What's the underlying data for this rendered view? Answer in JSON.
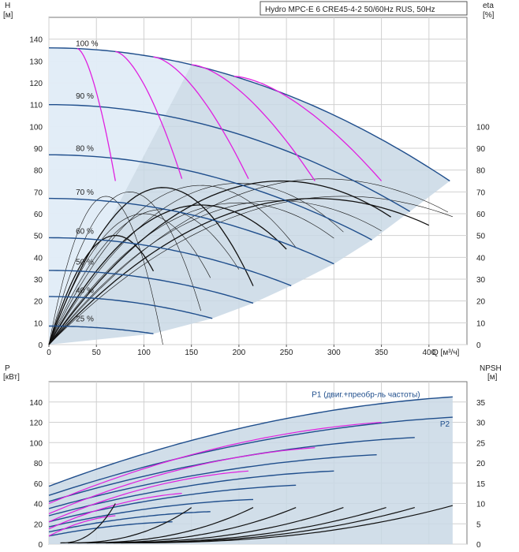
{
  "chart_data": [
    {
      "type": "line",
      "title": "Hydro MPC-E 6 CRE45-4-2 50/60Hz RUS, 50Hz",
      "ylabel": "H",
      "yunit": "[м]",
      "y2label": "eta",
      "y2unit": "[%]",
      "xlabel": "Q [м³/ч]",
      "xlim": [
        0,
        440
      ],
      "ylim": [
        0,
        150
      ],
      "y2lim": [
        0,
        150
      ],
      "grid": true,
      "x_ticks": [
        "0",
        "50",
        "100",
        "150",
        "200",
        "250",
        "300",
        "350",
        "400"
      ],
      "y_ticks": [
        "0",
        "10",
        "20",
        "30",
        "40",
        "50",
        "60",
        "70",
        "80",
        "90",
        "100",
        "110",
        "120",
        "130",
        "140"
      ],
      "y2_ticks": [
        "0",
        "10",
        "20",
        "30",
        "40",
        "50",
        "60",
        "70",
        "80",
        "90",
        "100"
      ],
      "colors": {
        "head": "#1f4e8c",
        "iso": "#e020e0",
        "eta": "#111111",
        "area": "#c9d8e5"
      },
      "speed_labels": [
        {
          "text": "100 %",
          "q": 25,
          "h": 136
        },
        {
          "text": "90 %",
          "q": 25,
          "h": 112
        },
        {
          "text": "80 %",
          "q": 25,
          "h": 88
        },
        {
          "text": "70 %",
          "q": 25,
          "h": 68
        },
        {
          "text": "60 %",
          "q": 25,
          "h": 50
        },
        {
          "text": "50 %",
          "q": 25,
          "h": 36
        },
        {
          "text": "40 %",
          "q": 25,
          "h": 23
        },
        {
          "text": "25 %",
          "q": 25,
          "h": 10
        }
      ],
      "head_curves": [
        {
          "h0": 136,
          "qmax": 422,
          "hend": 75
        },
        {
          "h0": 110,
          "qmax": 380,
          "hend": 61
        },
        {
          "h0": 87,
          "qmax": 340,
          "hend": 48
        },
        {
          "h0": 67,
          "qmax": 300,
          "hend": 37
        },
        {
          "h0": 49,
          "qmax": 255,
          "hend": 27
        },
        {
          "h0": 34,
          "qmax": 215,
          "hend": 19
        },
        {
          "h0": 22,
          "qmax": 172,
          "hend": 12
        },
        {
          "h0": 8.5,
          "qmax": 110,
          "hend": 5
        }
      ],
      "iso_curves": [
        {
          "q1": 30,
          "q2": 70,
          "h2": 75
        },
        {
          "q1": 70,
          "q2": 140,
          "h2": 76
        },
        {
          "q1": 110,
          "q2": 210,
          "h2": 76
        },
        {
          "q1": 150,
          "q2": 280,
          "h2": 75
        },
        {
          "q1": 195,
          "q2": 350,
          "h2": 75
        }
      ],
      "eta_curves": [
        {
          "qpeak": 70,
          "peak": 50,
          "qend": 110
        },
        {
          "qpeak": 60,
          "peak": 68,
          "qend": 120
        },
        {
          "qpeak": 85,
          "peak": 70,
          "qend": 160
        },
        {
          "qpeak": 120,
          "peak": 72,
          "qend": 215
        },
        {
          "qpeak": 160,
          "peak": 73,
          "qend": 260
        },
        {
          "qpeak": 200,
          "peak": 74,
          "qend": 310
        },
        {
          "qpeak": 245,
          "peak": 75,
          "qend": 360
        },
        {
          "qpeak": 290,
          "peak": 76,
          "qend": 420
        },
        {
          "qpeak": 310,
          "peak": 68,
          "qend": 425
        },
        {
          "qpeak": 280,
          "peak": 67,
          "qend": 400
        },
        {
          "qpeak": 240,
          "peak": 66,
          "qend": 350
        },
        {
          "qpeak": 200,
          "peak": 65,
          "qend": 300
        },
        {
          "qpeak": 160,
          "peak": 64,
          "qend": 250
        },
        {
          "qpeak": 120,
          "peak": 62,
          "qend": 200
        },
        {
          "qpeak": 100,
          "peak": 60,
          "qend": 170
        }
      ]
    },
    {
      "type": "line",
      "ylabel": "P",
      "yunit": "[кВт]",
      "y2label": "NPSH",
      "y2unit": "[м]",
      "xlim": [
        0,
        440
      ],
      "ylim": [
        0,
        160
      ],
      "y2lim": [
        0,
        40
      ],
      "grid": true,
      "y_ticks": [
        "0",
        "20",
        "40",
        "60",
        "80",
        "100",
        "120",
        "140"
      ],
      "y2_ticks": [
        "0",
        "5",
        "10",
        "15",
        "20",
        "25",
        "30",
        "35"
      ],
      "series_labels": [
        {
          "text": "P1 (двиг.+преобр-ль частоты)",
          "q": 275,
          "p": 148
        },
        {
          "text": "P2",
          "q": 410,
          "p": 119
        }
      ],
      "power_curves": [
        {
          "p0": 57,
          "qend": 425,
          "pend": 145
        },
        {
          "p0": 48,
          "qend": 425,
          "pend": 125
        },
        {
          "p0": 42,
          "qend": 385,
          "pend": 105
        },
        {
          "p0": 35,
          "qend": 345,
          "pend": 88
        },
        {
          "p0": 28,
          "qend": 300,
          "pend": 72
        },
        {
          "p0": 22,
          "qend": 260,
          "pend": 58
        },
        {
          "p0": 17,
          "qend": 215,
          "pend": 44
        },
        {
          "p0": 12,
          "qend": 170,
          "pend": 32
        },
        {
          "p0": 8,
          "qend": 130,
          "pend": 22
        }
      ],
      "power_magenta": [
        {
          "p0": 40,
          "qend": 350,
          "pend": 120
        },
        {
          "p0": 30,
          "qend": 280,
          "pend": 95
        },
        {
          "p0": 22,
          "qend": 210,
          "pend": 72
        },
        {
          "p0": 15,
          "qend": 140,
          "pend": 50
        },
        {
          "p0": 8,
          "qend": 70,
          "pend": 28
        }
      ],
      "npsh_curves": [
        {
          "qstart": 60,
          "qend": 70,
          "nend": 10
        },
        {
          "qstart": 100,
          "qend": 150,
          "nend": 9
        },
        {
          "qstart": 150,
          "qend": 215,
          "nend": 9
        },
        {
          "qstart": 200,
          "qend": 260,
          "nend": 9
        },
        {
          "qstart": 250,
          "qend": 310,
          "nend": 9
        },
        {
          "qstart": 300,
          "qend": 355,
          "nend": 9
        },
        {
          "qstart": 340,
          "qend": 385,
          "nend": 9
        },
        {
          "qstart": 380,
          "qend": 425,
          "nend": 9.5
        }
      ]
    }
  ]
}
